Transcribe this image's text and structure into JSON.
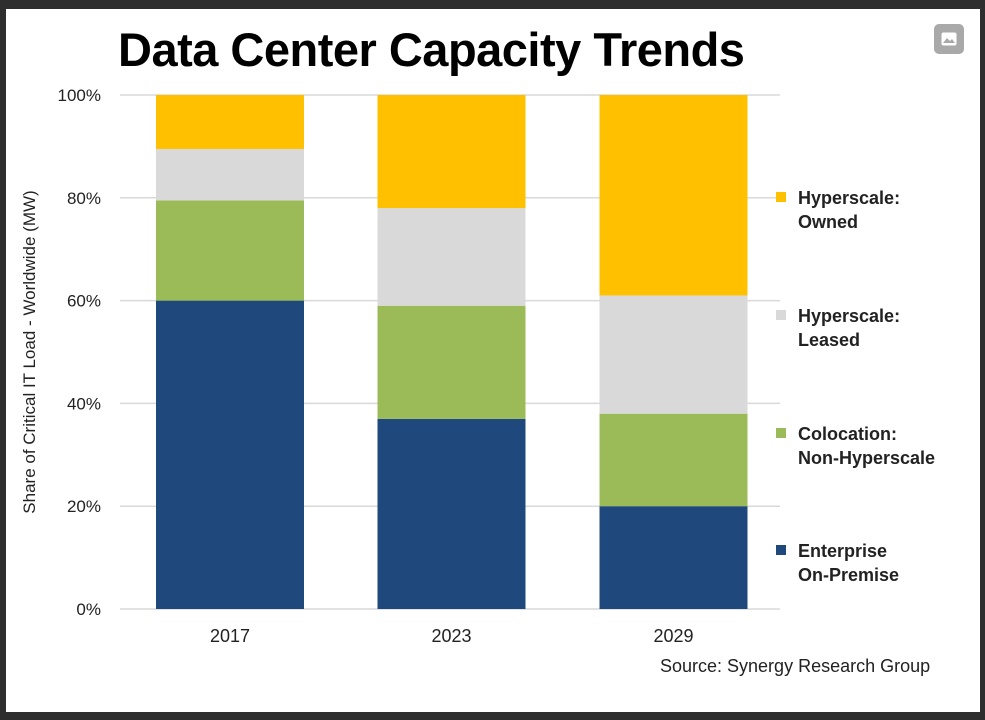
{
  "viewer": {
    "image_button_icon": "image-icon"
  },
  "chart_data": {
    "type": "bar",
    "stacked": true,
    "title": "Data Center Capacity Trends",
    "xlabel": "",
    "ylabel": "Share of Critical IT Load - Worldwide (MW)",
    "ylim": [
      0,
      100
    ],
    "yticks": [
      "0%",
      "20%",
      "40%",
      "60%",
      "80%",
      "100%"
    ],
    "categories": [
      "2017",
      "2023",
      "2029"
    ],
    "series": [
      {
        "name": "Enterprise On-Premise",
        "label_lines": [
          "Enterprise",
          "On-Premise"
        ],
        "color": "#1f497d",
        "values": [
          60,
          37,
          20
        ]
      },
      {
        "name": "Colocation: Non-Hyperscale",
        "label_lines": [
          "Colocation:",
          "Non-Hyperscale"
        ],
        "color": "#9bbb59",
        "values": [
          19.5,
          22,
          18
        ]
      },
      {
        "name": "Hyperscale: Leased",
        "label_lines": [
          "Hyperscale:",
          "Leased"
        ],
        "color": "#d9d9d9",
        "values": [
          10,
          19,
          23
        ]
      },
      {
        "name": "Hyperscale: Owned",
        "label_lines": [
          "Hyperscale:",
          "Owned"
        ],
        "color": "#ffc000",
        "values": [
          10.5,
          22,
          39
        ]
      }
    ],
    "grid": true,
    "legend": "right",
    "source": "Source: Synergy  Research Group"
  }
}
